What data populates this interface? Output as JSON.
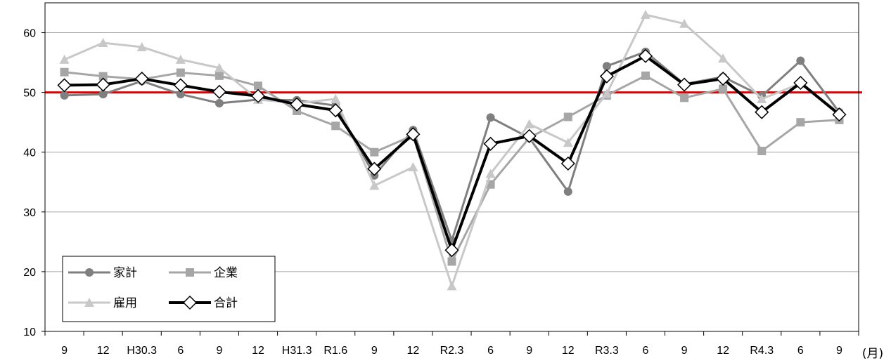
{
  "chart_data": {
    "type": "line",
    "categories": [
      "9",
      "12",
      "H30.3",
      "6",
      "9",
      "12",
      "H31.3",
      "R1.6",
      "9",
      "12",
      "R2.3",
      "6",
      "9",
      "12",
      "R3.3",
      "6",
      "9",
      "12",
      "R4.3",
      "6",
      "9"
    ],
    "x_unit_label": "(月)",
    "ylim": [
      10,
      65
    ],
    "yticks": [
      10,
      20,
      30,
      40,
      50,
      60
    ],
    "grid": true,
    "legend_position": "bottom-left",
    "reference_line": {
      "value": 50,
      "color": "#e00000"
    },
    "series": [
      {
        "name": "家計",
        "marker": "circle",
        "color": "#7f7f7f",
        "values": [
          49.5,
          49.7,
          51.9,
          49.7,
          48.2,
          48.8,
          48.7,
          47.8,
          36.1,
          43.7,
          25.2,
          45.8,
          42.4,
          33.4,
          54.4,
          56.8,
          51.4,
          52.6,
          49.4,
          55.3,
          46.7
        ]
      },
      {
        "name": "企業",
        "marker": "square",
        "color": "#a6a6a6",
        "values": [
          53.4,
          52.7,
          52.2,
          53.3,
          52.8,
          51.1,
          46.9,
          44.4,
          40.0,
          42.8,
          21.7,
          34.6,
          42.4,
          45.9,
          49.5,
          52.8,
          49.1,
          50.6,
          40.2,
          45.0,
          45.4
        ]
      },
      {
        "name": "雇用",
        "marker": "triangle",
        "color": "#c8c8c8",
        "values": [
          55.5,
          58.3,
          57.6,
          55.5,
          54.1,
          48.8,
          48.2,
          48.9,
          34.4,
          37.5,
          17.6,
          36.4,
          44.7,
          41.6,
          49.8,
          63.0,
          61.5,
          55.7,
          48.9,
          51.5,
          46.6
        ]
      },
      {
        "name": "合計",
        "marker": "diamond",
        "color": "#000000",
        "values": [
          51.2,
          51.3,
          52.3,
          51.2,
          50.1,
          49.4,
          48.0,
          47.0,
          37.2,
          43.0,
          23.6,
          41.4,
          42.7,
          38.1,
          52.7,
          56.1,
          51.3,
          52.3,
          46.7,
          51.6,
          46.3
        ]
      }
    ]
  }
}
